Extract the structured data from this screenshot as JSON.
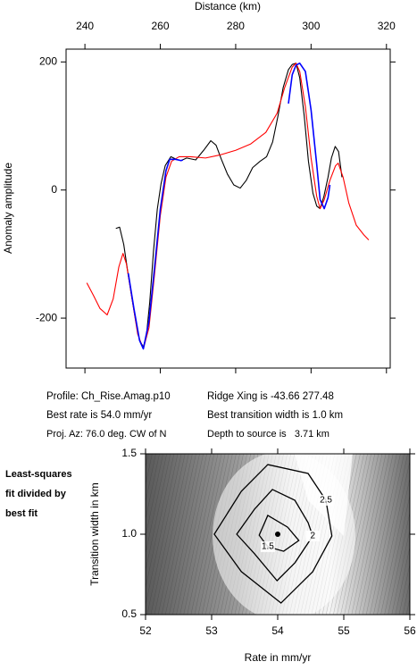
{
  "chart_data": [
    {
      "type": "line",
      "xlabel": "Distance (km)",
      "ylabel": "Anomaly amplitude",
      "xlim": [
        235,
        321
      ],
      "ylim": [
        -278,
        220
      ],
      "xticks": [
        240,
        260,
        280,
        300,
        320
      ],
      "yticks": [
        -200,
        0,
        200
      ],
      "grid": false,
      "series": [
        {
          "color": "#000000",
          "x": [
            248.2,
            249.2,
            250.3,
            251.3,
            252.5,
            253.5,
            254.5,
            255.5,
            256.3,
            257.2,
            258.2,
            259.2,
            260.2,
            261.3,
            262.8,
            264.2,
            265.5,
            267,
            269.4,
            271.5,
            273.4,
            274.8,
            276.2,
            277.8,
            279.5,
            281.2,
            282.8,
            284.5,
            286.5,
            288.2,
            289.8,
            291.2,
            292.6,
            294,
            295,
            296,
            297,
            298.2,
            299.3,
            300.5,
            301.5,
            302.4,
            303.4,
            304.5,
            305.4,
            306.4,
            307.3,
            308.2
          ],
          "values": [
            -60,
            -58,
            -85,
            -125,
            -170,
            -205,
            -235,
            -245,
            -228,
            -175,
            -95,
            -30,
            10,
            38,
            52,
            48,
            46,
            50,
            47,
            62,
            77,
            70,
            48,
            25,
            8,
            3,
            15,
            35,
            45,
            52,
            75,
            115,
            160,
            188,
            196,
            198,
            175,
            115,
            45,
            -5,
            -25,
            -29,
            -10,
            20,
            50,
            68,
            60,
            20
          ]
        },
        {
          "color": "#ff0000",
          "x": [
            240.5,
            242.3,
            244,
            245.9,
            247.5,
            249,
            250.1,
            251,
            252.5,
            254,
            255.5,
            257,
            258.5,
            260,
            261.5,
            263,
            265,
            268,
            272,
            276,
            280,
            284,
            288,
            291,
            293,
            295,
            296,
            297,
            298.5,
            300,
            301.5,
            302.4,
            303.5,
            305,
            306.5,
            307.2,
            308.5,
            310,
            312,
            314,
            315.3
          ],
          "values": [
            -145,
            -165,
            -185,
            -195,
            -170,
            -120,
            -99,
            -115,
            -170,
            -225,
            -248,
            -215,
            -130,
            -40,
            20,
            45,
            52,
            52,
            50,
            55,
            62,
            72,
            90,
            120,
            160,
            192,
            198,
            185,
            130,
            50,
            -10,
            -29,
            -15,
            15,
            38,
            42,
            20,
            -20,
            -55,
            -70,
            -78
          ]
        },
        {
          "color": "#0000ff",
          "x": [
            251.5,
            253,
            254.5,
            255.5,
            257,
            258.5,
            260,
            261.5,
            262.5,
            264,
            265.5,
            266,
            292.5,
            294,
            295,
            296,
            297,
            298.5,
            300,
            301.5,
            302.4,
            303.5,
            304.5,
            305
          ],
          "values": [
            -130,
            -185,
            -235,
            -248,
            -205,
            -120,
            -30,
            30,
            48,
            48,
            46,
            47,
            null,
            135,
            180,
            195,
            198,
            185,
            125,
            40,
            -15,
            -29,
            -12,
            8
          ]
        }
      ]
    },
    {
      "type": "contour",
      "xlabel": "Rate in mm/yr",
      "ylabel": "Transition width in km",
      "xlim": [
        52,
        56
      ],
      "ylim": [
        0.5,
        1.5
      ],
      "xticks": [
        52,
        53,
        54,
        55,
        56
      ],
      "yticks": [
        0.5,
        {
          "value": 1,
          "label": "1.0"
        },
        1.5
      ],
      "best": {
        "x": 54,
        "y": 1
      },
      "contours": [
        {
          "level": 1.5,
          "x": [
            53.85,
            54.15,
            54.32,
            54.09,
            53.85,
            53.72
          ],
          "y": [
            1.117,
            1.044,
            0.961,
            0.894,
            0.922,
            0.994
          ]
        },
        {
          "level": 2,
          "x": [
            53.92,
            54.26,
            54.46,
            54.53,
            54.26,
            53.99,
            53.65,
            53.38,
            53.65
          ],
          "y": [
            1.278,
            1.211,
            1.072,
            0.989,
            0.822,
            0.711,
            0.878,
            1.0,
            1.156
          ]
        },
        {
          "level": 2.5,
          "x": [
            53.85,
            54.46,
            54.73,
            54.82,
            54.53,
            54.05,
            53.45,
            53.04,
            53.45
          ],
          "y": [
            1.433,
            1.378,
            1.211,
            0.989,
            0.767,
            0.572,
            0.767,
            1.0,
            1.267
          ]
        }
      ]
    }
  ],
  "info": {
    "profile": "Profile: Ch_Rise.Amag.p10",
    "rate": "Best rate is 54.0 mm/yr",
    "azimuth": "Proj. Az: 76.0 deg. CW of N",
    "ridge": "Ridge Xing is -43.66 277.48",
    "width": "Best transition width is 1.0 km",
    "depth": "Depth to source is   3.71 km"
  },
  "caption": [
    "Least-squares",
    "fit divided by",
    "best fit"
  ]
}
